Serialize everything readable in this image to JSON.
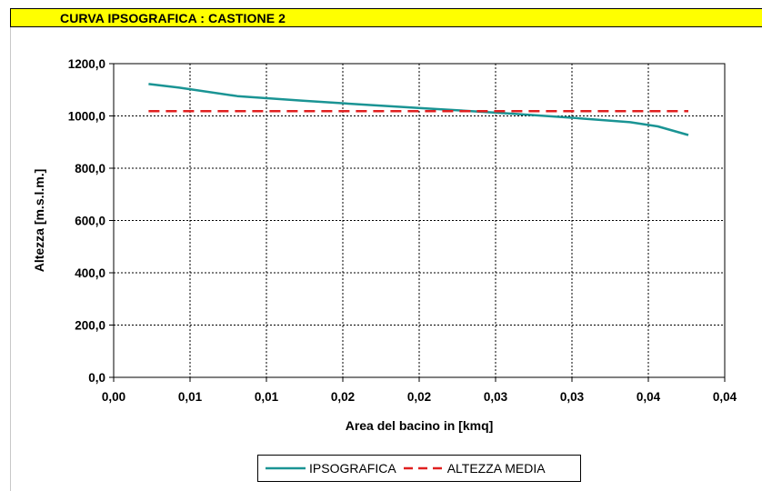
{
  "header": {
    "title": "CURVA IPSOGRAFICA :  CASTIONE 2"
  },
  "colors": {
    "title_bg": "#ffff00",
    "series_ipso": "#1a9494",
    "series_media": "#e02020",
    "grid": "#000000"
  },
  "chart_data": {
    "type": "line",
    "xlabel": "Area del bacino in [kmq]",
    "ylabel": "Altezza [m.s.l.m.]",
    "xlim": [
      0,
      0.042
    ],
    "ylim": [
      0,
      1200
    ],
    "grid": true,
    "legend_position": "bottom",
    "x_tick_labels": [
      "0,00",
      "0,01",
      "0,01",
      "0,02",
      "0,02",
      "0,03",
      "0,03",
      "0,04",
      "0,04"
    ],
    "y_tick_labels": [
      "0,0",
      "200,0",
      "400,0",
      "600,0",
      "800,0",
      "1000,0",
      "1200,0"
    ],
    "series": [
      {
        "name": "IPSOGRAFICA",
        "style": "solid",
        "points": [
          {
            "x": 0.0024,
            "y": 1122
          },
          {
            "x": 0.0045,
            "y": 1108
          },
          {
            "x": 0.0085,
            "y": 1076
          },
          {
            "x": 0.013,
            "y": 1058
          },
          {
            "x": 0.0175,
            "y": 1042
          },
          {
            "x": 0.022,
            "y": 1027
          },
          {
            "x": 0.027,
            "y": 1010
          },
          {
            "x": 0.0315,
            "y": 993
          },
          {
            "x": 0.0355,
            "y": 976
          },
          {
            "x": 0.0374,
            "y": 960
          },
          {
            "x": 0.0395,
            "y": 927
          }
        ]
      },
      {
        "name": "ALTEZZA MEDIA",
        "style": "dashed",
        "points": [
          {
            "x": 0.0024,
            "y": 1018
          },
          {
            "x": 0.0395,
            "y": 1018
          }
        ]
      }
    ]
  }
}
